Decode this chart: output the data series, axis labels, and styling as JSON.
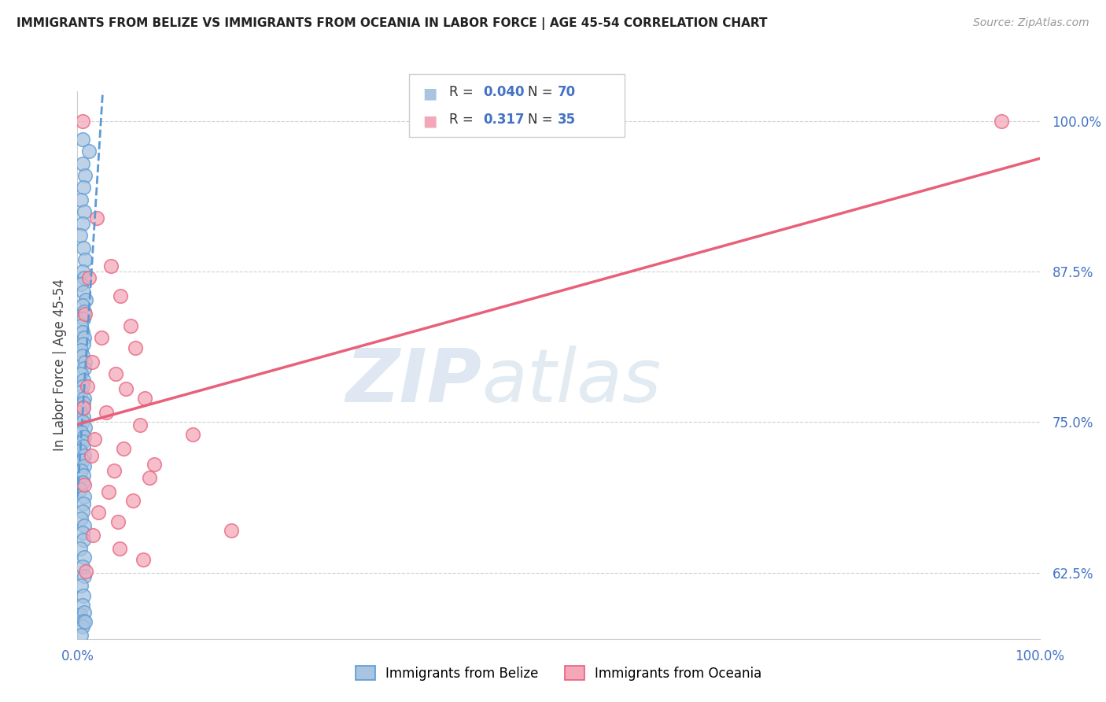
{
  "title": "IMMIGRANTS FROM BELIZE VS IMMIGRANTS FROM OCEANIA IN LABOR FORCE | AGE 45-54 CORRELATION CHART",
  "source": "Source: ZipAtlas.com",
  "ylabel": "In Labor Force | Age 45-54",
  "belize_R": 0.04,
  "belize_N": 70,
  "oceania_R": 0.317,
  "oceania_N": 35,
  "belize_color": "#a8c4e0",
  "oceania_color": "#f4a7b9",
  "belize_line_color": "#5b9bd5",
  "oceania_line_color": "#e8607a",
  "legend_label_belize": "Immigrants from Belize",
  "legend_label_oceania": "Immigrants from Oceania",
  "xlim": [
    0.0,
    1.0
  ],
  "ylim": [
    0.57,
    1.025
  ],
  "yticks": [
    0.625,
    0.75,
    0.875,
    1.0
  ],
  "ytick_labels": [
    "62.5%",
    "75.0%",
    "87.5%",
    "100.0%"
  ],
  "xtick_labels": [
    "0.0%",
    "100.0%"
  ],
  "watermark_zip": "ZIP",
  "watermark_atlas": "atlas",
  "belize_scatter_x": [
    0.005,
    0.012,
    0.005,
    0.008,
    0.006,
    0.004,
    0.007,
    0.005,
    0.003,
    0.006,
    0.008,
    0.005,
    0.007,
    0.004,
    0.006,
    0.009,
    0.005,
    0.007,
    0.006,
    0.004,
    0.005,
    0.007,
    0.006,
    0.004,
    0.005,
    0.008,
    0.007,
    0.004,
    0.006,
    0.005,
    0.004,
    0.007,
    0.006,
    0.005,
    0.003,
    0.006,
    0.005,
    0.008,
    0.004,
    0.007,
    0.005,
    0.006,
    0.003,
    0.007,
    0.005,
    0.007,
    0.004,
    0.006,
    0.005,
    0.003,
    0.007,
    0.006,
    0.005,
    0.004,
    0.007,
    0.005,
    0.006,
    0.003,
    0.007,
    0.005,
    0.007,
    0.004,
    0.006,
    0.005,
    0.003,
    0.007,
    0.006,
    0.005,
    0.004,
    0.008
  ],
  "belize_scatter_y": [
    0.985,
    0.975,
    0.965,
    0.955,
    0.945,
    0.935,
    0.925,
    0.915,
    0.905,
    0.895,
    0.885,
    0.875,
    0.87,
    0.865,
    0.858,
    0.852,
    0.847,
    0.842,
    0.836,
    0.83,
    0.825,
    0.82,
    0.815,
    0.81,
    0.805,
    0.8,
    0.795,
    0.79,
    0.785,
    0.78,
    0.775,
    0.77,
    0.766,
    0.762,
    0.758,
    0.754,
    0.75,
    0.746,
    0.742,
    0.738,
    0.734,
    0.73,
    0.726,
    0.722,
    0.718,
    0.714,
    0.71,
    0.706,
    0.7,
    0.694,
    0.688,
    0.682,
    0.676,
    0.67,
    0.664,
    0.658,
    0.652,
    0.645,
    0.638,
    0.63,
    0.622,
    0.614,
    0.606,
    0.598,
    0.59,
    0.592,
    0.585,
    0.58,
    0.573,
    0.584
  ],
  "oceania_scatter_x": [
    0.005,
    0.02,
    0.035,
    0.012,
    0.045,
    0.008,
    0.055,
    0.025,
    0.06,
    0.015,
    0.04,
    0.01,
    0.05,
    0.07,
    0.006,
    0.03,
    0.12,
    0.065,
    0.018,
    0.048,
    0.014,
    0.08,
    0.038,
    0.075,
    0.007,
    0.032,
    0.058,
    0.022,
    0.042,
    0.16,
    0.016,
    0.044,
    0.068,
    0.009,
    0.96
  ],
  "oceania_scatter_y": [
    1.0,
    0.92,
    0.88,
    0.87,
    0.855,
    0.84,
    0.83,
    0.82,
    0.812,
    0.8,
    0.79,
    0.78,
    0.778,
    0.77,
    0.762,
    0.758,
    0.74,
    0.748,
    0.736,
    0.728,
    0.722,
    0.715,
    0.71,
    0.704,
    0.698,
    0.692,
    0.685,
    0.675,
    0.667,
    0.66,
    0.656,
    0.645,
    0.636,
    0.626,
    1.0
  ]
}
